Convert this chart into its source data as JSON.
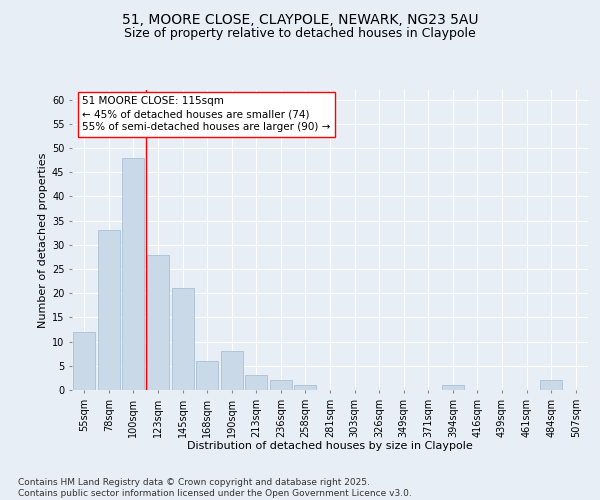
{
  "title_line1": "51, MOORE CLOSE, CLAYPOLE, NEWARK, NG23 5AU",
  "title_line2": "Size of property relative to detached houses in Claypole",
  "xlabel": "Distribution of detached houses by size in Claypole",
  "ylabel": "Number of detached properties",
  "categories": [
    "55sqm",
    "78sqm",
    "100sqm",
    "123sqm",
    "145sqm",
    "168sqm",
    "190sqm",
    "213sqm",
    "236sqm",
    "258sqm",
    "281sqm",
    "303sqm",
    "326sqm",
    "349sqm",
    "371sqm",
    "394sqm",
    "416sqm",
    "439sqm",
    "461sqm",
    "484sqm",
    "507sqm"
  ],
  "values": [
    12,
    33,
    48,
    28,
    21,
    6,
    8,
    3,
    2,
    1,
    0,
    0,
    0,
    0,
    0,
    1,
    0,
    0,
    0,
    2,
    0
  ],
  "bar_color": "#c9d9e8",
  "bar_edgecolor": "#a0b8d0",
  "ylim": [
    0,
    62
  ],
  "yticks": [
    0,
    5,
    10,
    15,
    20,
    25,
    30,
    35,
    40,
    45,
    50,
    55,
    60
  ],
  "property_label": "51 MOORE CLOSE: 115sqm",
  "annotation_line1": "← 45% of detached houses are smaller (74)",
  "annotation_line2": "55% of semi-detached houses are larger (90) →",
  "vline_x_index": 2.5,
  "footer_line1": "Contains HM Land Registry data © Crown copyright and database right 2025.",
  "footer_line2": "Contains public sector information licensed under the Open Government Licence v3.0.",
  "background_color": "#e8eef5",
  "plot_bg_color": "#e8eef5",
  "grid_color": "#ffffff",
  "title_fontsize": 10,
  "subtitle_fontsize": 9,
  "axis_label_fontsize": 8,
  "tick_fontsize": 7,
  "annotation_fontsize": 7.5,
  "footer_fontsize": 6.5
}
